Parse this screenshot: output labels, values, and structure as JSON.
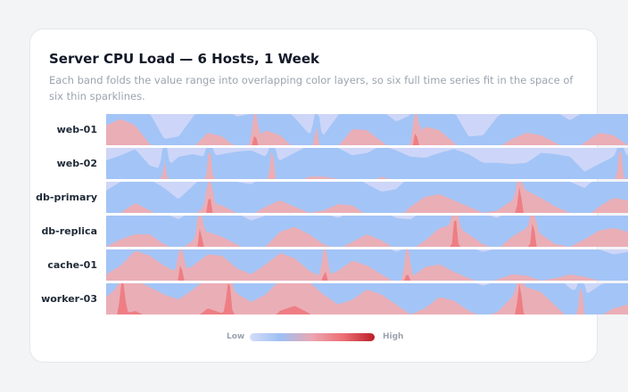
{
  "title": "Server CPU Load — 6 Hosts, 1 Week",
  "subtitle": "Each band folds the value range into overlapping color layers, so six full time series fit in the space of six thin sparklines.",
  "legend": {
    "low": "Low",
    "high": "High"
  },
  "colors": {
    "band1": "#cdd6f8",
    "band2": "#a3c4f6",
    "band3": "#eaaeb6",
    "band4": "#ee7e84",
    "band_background": "#ffffff",
    "legend_gradient": [
      "#d4dcf8",
      "#9dbff2",
      "#eca6b0",
      "#ec6f74",
      "#bb1f28"
    ]
  },
  "chart_data": {
    "type": "horizon",
    "title": "Server CPU Load — 6 Hosts, 1 Week",
    "subtitle": "Each band folds the value range into overlapping color layers, so six full time series fit in the space of six thin sparklines.",
    "xlabel": "",
    "ylabel": "",
    "bands": 4,
    "ylim": [
      0,
      1
    ],
    "series": [
      {
        "name": "web-01",
        "values": [
          0.66,
          0.71,
          0.66,
          0.51,
          0.3,
          0.32,
          0.48,
          0.6,
          0.57,
          0.48,
          0.5,
          0.62,
          0.58,
          0.47,
          0.34,
          0.33,
          0.49,
          0.63,
          0.62,
          0.53,
          0.44,
          0.49,
          0.65,
          0.62,
          0.52,
          0.32,
          0.33,
          0.48,
          0.55,
          0.6,
          0.58,
          0.52,
          0.45,
          0.52,
          0.6,
          0.58,
          0.5
        ]
      },
      {
        "name": "web-02",
        "values": [
          0.4,
          0.44,
          0.49,
          0.36,
          0.32,
          0.43,
          0.45,
          0.42,
          0.45,
          0.47,
          0.48,
          0.43,
          0.4,
          0.46,
          0.52,
          0.52,
          0.5,
          0.44,
          0.46,
          0.52,
          0.48,
          0.43,
          0.42,
          0.46,
          0.49,
          0.45,
          0.38,
          0.38,
          0.37,
          0.38,
          0.46,
          0.45,
          0.43,
          0.31,
          0.37,
          0.43,
          0.44
        ]
      },
      {
        "name": "db-primary",
        "values": [
          0.43,
          0.5,
          0.58,
          0.52,
          0.45,
          0.36,
          0.47,
          0.58,
          0.56,
          0.5,
          0.48,
          0.55,
          0.6,
          0.55,
          0.5,
          0.52,
          0.57,
          0.56,
          0.48,
          0.42,
          0.44,
          0.55,
          0.63,
          0.65,
          0.6,
          0.55,
          0.5,
          0.52,
          0.6,
          0.68,
          0.62,
          0.55,
          0.5,
          0.45,
          0.55,
          0.62,
          0.6
        ]
      },
      {
        "name": "db-replica",
        "values": [
          0.5,
          0.56,
          0.6,
          0.6,
          0.52,
          0.47,
          0.55,
          0.62,
          0.58,
          0.52,
          0.46,
          0.5,
          0.62,
          0.66,
          0.6,
          0.52,
          0.48,
          0.54,
          0.6,
          0.55,
          0.48,
          0.47,
          0.55,
          0.65,
          0.68,
          0.6,
          0.52,
          0.48,
          0.58,
          0.65,
          0.6,
          0.52,
          0.5,
          0.56,
          0.63,
          0.65,
          0.62
        ]
      },
      {
        "name": "cache-01",
        "values": [
          0.55,
          0.62,
          0.74,
          0.7,
          0.62,
          0.56,
          0.62,
          0.71,
          0.7,
          0.6,
          0.55,
          0.63,
          0.72,
          0.68,
          0.58,
          0.52,
          0.58,
          0.66,
          0.62,
          0.55,
          0.48,
          0.52,
          0.61,
          0.63,
          0.57,
          0.52,
          0.48,
          0.51,
          0.55,
          0.54,
          0.5,
          0.52,
          0.55,
          0.53,
          0.5,
          0.46,
          0.48
        ]
      },
      {
        "name": "worker-03",
        "values": [
          0.64,
          0.74,
          0.78,
          0.72,
          0.66,
          0.62,
          0.7,
          0.8,
          0.76,
          0.67,
          0.6,
          0.66,
          0.78,
          0.82,
          0.76,
          0.66,
          0.58,
          0.62,
          0.7,
          0.66,
          0.58,
          0.5,
          0.55,
          0.64,
          0.61,
          0.53,
          0.48,
          0.52,
          0.64,
          0.72,
          0.68,
          0.57,
          0.46,
          0.4,
          0.48,
          0.55,
          0.58
        ]
      }
    ],
    "spikes": [
      {
        "series": "web-01",
        "positions": [
          0.285,
          0.403,
          0.593
        ]
      },
      {
        "series": "web-02",
        "positions": [
          0.112,
          0.198,
          0.318,
          0.985
        ]
      },
      {
        "series": "db-primary",
        "positions": [
          0.198,
          0.792
        ]
      },
      {
        "series": "db-replica",
        "positions": [
          0.18,
          0.669,
          0.818
        ]
      },
      {
        "series": "cache-01",
        "positions": [
          0.143,
          0.419,
          0.577
        ]
      },
      {
        "series": "worker-03",
        "positions": [
          0.031,
          0.235,
          0.792,
          0.91
        ]
      }
    ],
    "legend": [
      "Low",
      "High"
    ],
    "grid": false
  }
}
